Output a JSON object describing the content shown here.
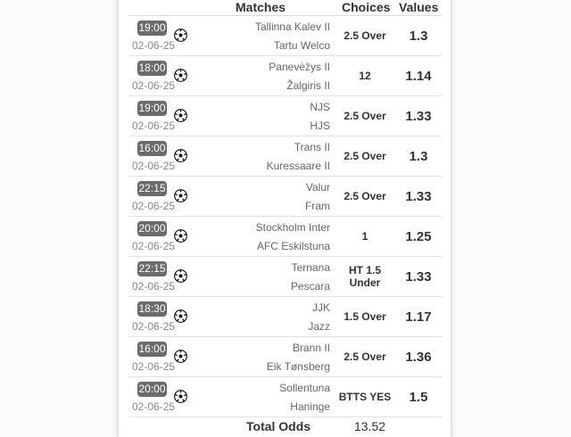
{
  "header": {
    "matches": "Matches",
    "choices": "Choices",
    "values": "Values"
  },
  "rows": [
    {
      "time": "19:00",
      "date": "02-06-25",
      "home": "Tallinna Kalev II",
      "away": "Tartu Welco",
      "choice": "2.5 Over",
      "value": "1.3"
    },
    {
      "time": "18:00",
      "date": "02-06-25",
      "home": "Panevėžys II",
      "away": "Žalgiris II",
      "choice": "12",
      "value": "1.14"
    },
    {
      "time": "19:00",
      "date": "02-06-25",
      "home": "NJS",
      "away": "HJS",
      "choice": "2.5 Over",
      "value": "1.33"
    },
    {
      "time": "16:00",
      "date": "02-06-25",
      "home": "Trans II",
      "away": "Kuressaare II",
      "choice": "2.5 Over",
      "value": "1.3"
    },
    {
      "time": "22:15",
      "date": "02-06-25",
      "home": "Valur",
      "away": "Fram",
      "choice": "2.5 Over",
      "value": "1.33"
    },
    {
      "time": "20:00",
      "date": "02-06-25",
      "home": "Stockholm Inter",
      "away": "AFC Eskilstuna",
      "choice": "1",
      "value": "1.25"
    },
    {
      "time": "22:15",
      "date": "02-06-25",
      "home": "Ternana",
      "away": "Pescara",
      "choice": "HT 1.5 Under",
      "value": "1.33"
    },
    {
      "time": "18:30",
      "date": "02-06-25",
      "home": "JJK",
      "away": "Jazz",
      "choice": "1.5 Over",
      "value": "1.17"
    },
    {
      "time": "16:00",
      "date": "02-06-25",
      "home": "Brann II",
      "away": "Eik Tønsberg",
      "choice": "2.5 Over",
      "value": "1.36"
    },
    {
      "time": "20:00",
      "date": "02-06-25",
      "home": "Sollentuna",
      "away": "Haninge",
      "choice": "BTTS YES",
      "value": "1.5"
    }
  ],
  "footer": {
    "label": "Total Odds",
    "value": "13.52"
  },
  "icons": {
    "sport": "soccer-ball-icon"
  }
}
